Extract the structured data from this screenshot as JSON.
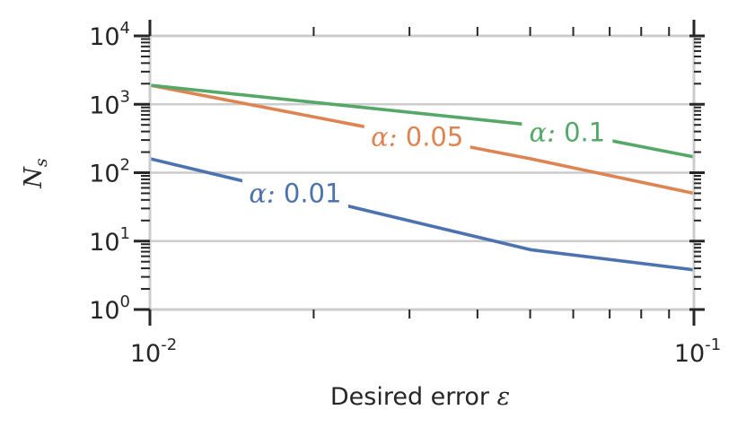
{
  "chart_data": {
    "type": "line",
    "xscale": "log",
    "yscale": "log",
    "xlim": [
      0.01,
      0.1
    ],
    "ylim": [
      1,
      10000
    ],
    "grid": "horizontal",
    "xlabel_text": "Desired error",
    "xlabel_symbol": "ε",
    "ylabel_main": "N",
    "ylabel_sub": "s",
    "xticks": [
      {
        "value": 0.01,
        "base": "10",
        "exp": "-2"
      },
      {
        "value": 0.1,
        "base": "10",
        "exp": "-1"
      }
    ],
    "yticks": [
      {
        "value": 1,
        "base": "10",
        "exp": "0"
      },
      {
        "value": 10,
        "base": "10",
        "exp": "1"
      },
      {
        "value": 100,
        "base": "10",
        "exp": "2"
      },
      {
        "value": 1000,
        "base": "10",
        "exp": "3"
      },
      {
        "value": 10000,
        "base": "10",
        "exp": "4"
      }
    ],
    "series": [
      {
        "name": "α: 0.01",
        "symbol": "α:",
        "value_text": "0.01",
        "color": "#4c72b0",
        "x": [
          0.01,
          0.05,
          0.1
        ],
        "y": [
          160,
          7.5,
          3.8
        ]
      },
      {
        "name": "α: 0.05",
        "symbol": "α:",
        "value_text": "0.05",
        "color": "#dd8452",
        "x": [
          0.01,
          0.05,
          0.1
        ],
        "y": [
          1900,
          160,
          50
        ]
      },
      {
        "name": "α: 0.1",
        "symbol": "α:",
        "value_text": "0.1",
        "color": "#55a868",
        "x": [
          0.01,
          0.05,
          0.1
        ],
        "y": [
          1900,
          500,
          170
        ]
      }
    ],
    "colors": {
      "grid": "#cccccc",
      "axis": "#262626",
      "spine": "#cccccc"
    }
  }
}
